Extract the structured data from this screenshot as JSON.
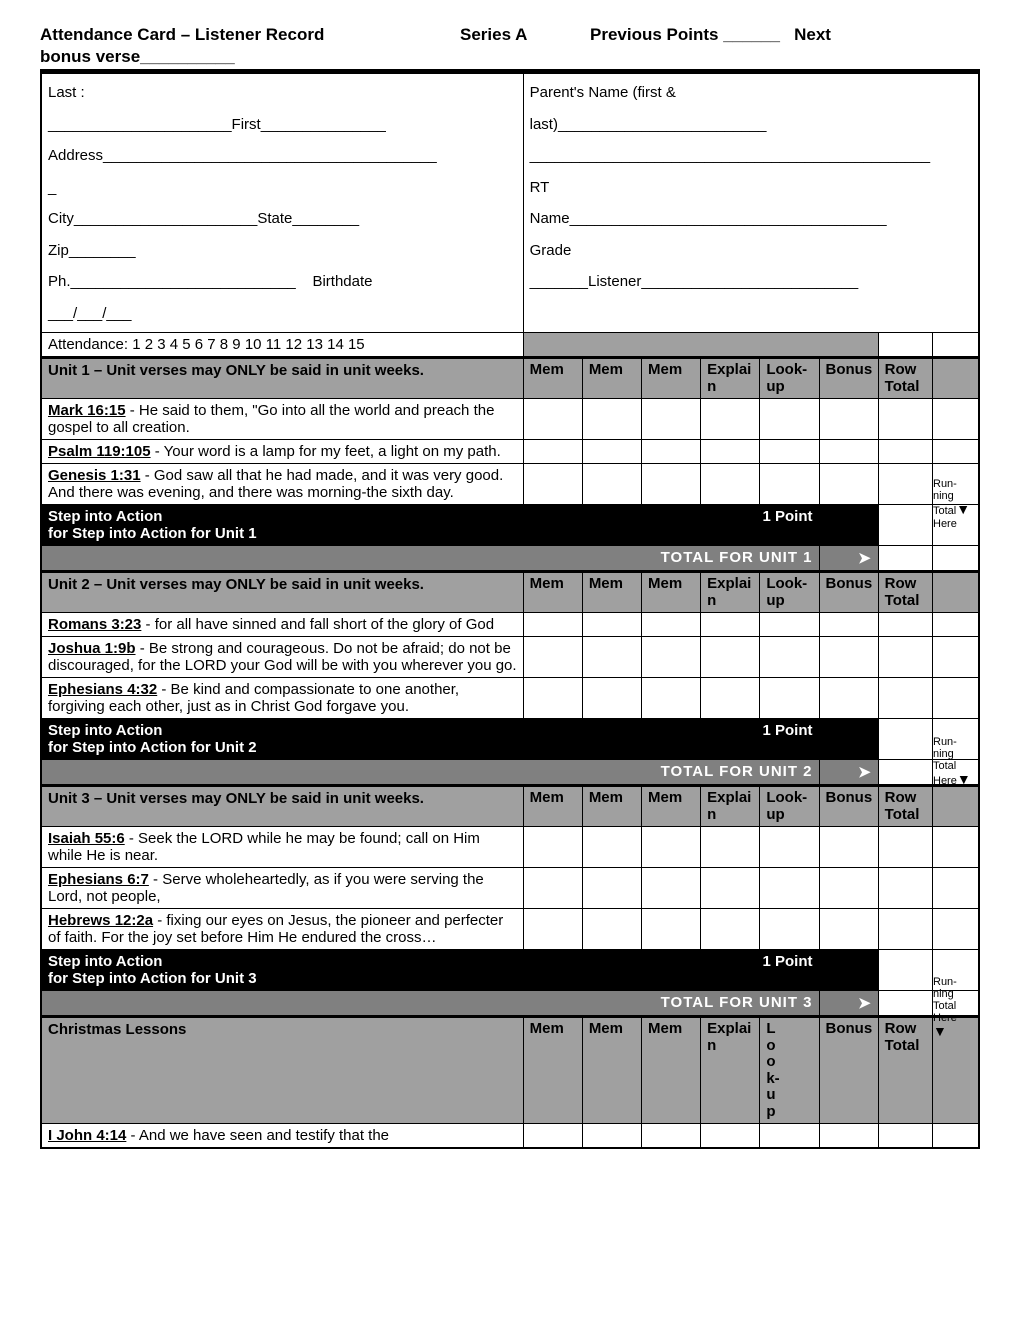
{
  "header": {
    "title": "Attendance Card – Listener Record",
    "series": "Series A",
    "previous_points": "Previous Points ______",
    "next": "Next",
    "bonus_verse": "bonus verse__________"
  },
  "info_left": {
    "last": "Last :",
    "first_line": "______________________First_______________",
    "address": "Address________________________________________",
    "dash": "_",
    "city_state": "City______________________State________",
    "zip": "Zip________",
    "phone_birth": "Ph.___________________________",
    "birthdate": "Birthdate",
    "date_slashes": "___/___/___"
  },
  "info_right": {
    "parent": "Parent's Name (first &",
    "last_line": "last)_________________________",
    "blank_line": "________________________________________________",
    "rt": "RT",
    "name": "Name______________________________________",
    "grade": "Grade",
    "listener": "_______Listener__________________________"
  },
  "attendance": "Attendance: 1   2   3   4   5   6   7   8   9   10   11   12   13   14   15",
  "column_headers": {
    "mem": "Mem",
    "explain": "Explai\nn",
    "lookup": "Look-\nup",
    "lookup_vert": "L\no\no\nk-\nu\np",
    "bonus": "Bonus",
    "row_total": "Row\nTotal"
  },
  "points_label": "1 Point",
  "running_note": "Run-\nning\nTotal\nHere",
  "units": [
    {
      "title": "Unit 1 – Unit verses may ONLY be said in unit weeks.",
      "verses": [
        {
          "ref": "Mark 16:15",
          "text": " - He said to them, \"Go into all the world and preach the gospel to all creation."
        },
        {
          "ref": "Psalm 119:105",
          "text": " - Your word is a lamp for my feet, a light on my path."
        },
        {
          "ref": "Genesis 1:31",
          "text": " - God saw all that he had made, and it was very good.  And there was evening, and there was morning-the sixth day."
        }
      ],
      "action_line1": "Step into Action",
      "action_line2": "for Step into Action for Unit 1",
      "total_label": "TOTAL FOR UNIT 1"
    },
    {
      "title": "Unit 2 – Unit verses may ONLY be said in unit weeks.",
      "verses": [
        {
          "ref": "Romans 3:23",
          "text": " - for all have sinned and fall short of the glory of God"
        },
        {
          "ref": "Joshua 1:9b",
          "text": " - Be strong and courageous.  Do not be afraid; do not be discouraged, for the LORD your God will be with you wherever you go."
        },
        {
          "ref": "Ephesians 4:32",
          "text": " - Be kind and compassionate to one another, forgiving each other, just as in Christ God forgave you."
        }
      ],
      "action_line1": "Step into Action",
      "action_line2": "for Step into Action for Unit 2",
      "total_label": "TOTAL FOR UNIT 2"
    },
    {
      "title": " Unit 3 – Unit verses may ONLY be said in unit weeks.",
      "verses": [
        {
          "ref": "Isaiah 55:6",
          "text": " - Seek the LORD while he may be found; call on Him while He is near."
        },
        {
          "ref": "Ephesians 6:7",
          "text": " - Serve wholeheartedly, as if you were serving the Lord, not people,"
        },
        {
          "ref": "Hebrews 12:2a",
          "text": " - fixing our eyes on Jesus, the pioneer and perfecter of faith. For the joy set before Him He endured the cross…"
        }
      ],
      "action_line1": "Step into Action",
      "action_line2": "for Step into Action for Unit 3",
      "total_label": "TOTAL FOR UNIT 3"
    }
  ],
  "christmas": {
    "title": "Christmas Lessons",
    "verse": {
      "ref": "I John 4:14",
      "text": " - And we have seen and testify that the"
    }
  },
  "colors": {
    "gray": "#a0a0a0",
    "dark_gray": "#808080",
    "black": "#000000",
    "white": "#ffffff"
  }
}
